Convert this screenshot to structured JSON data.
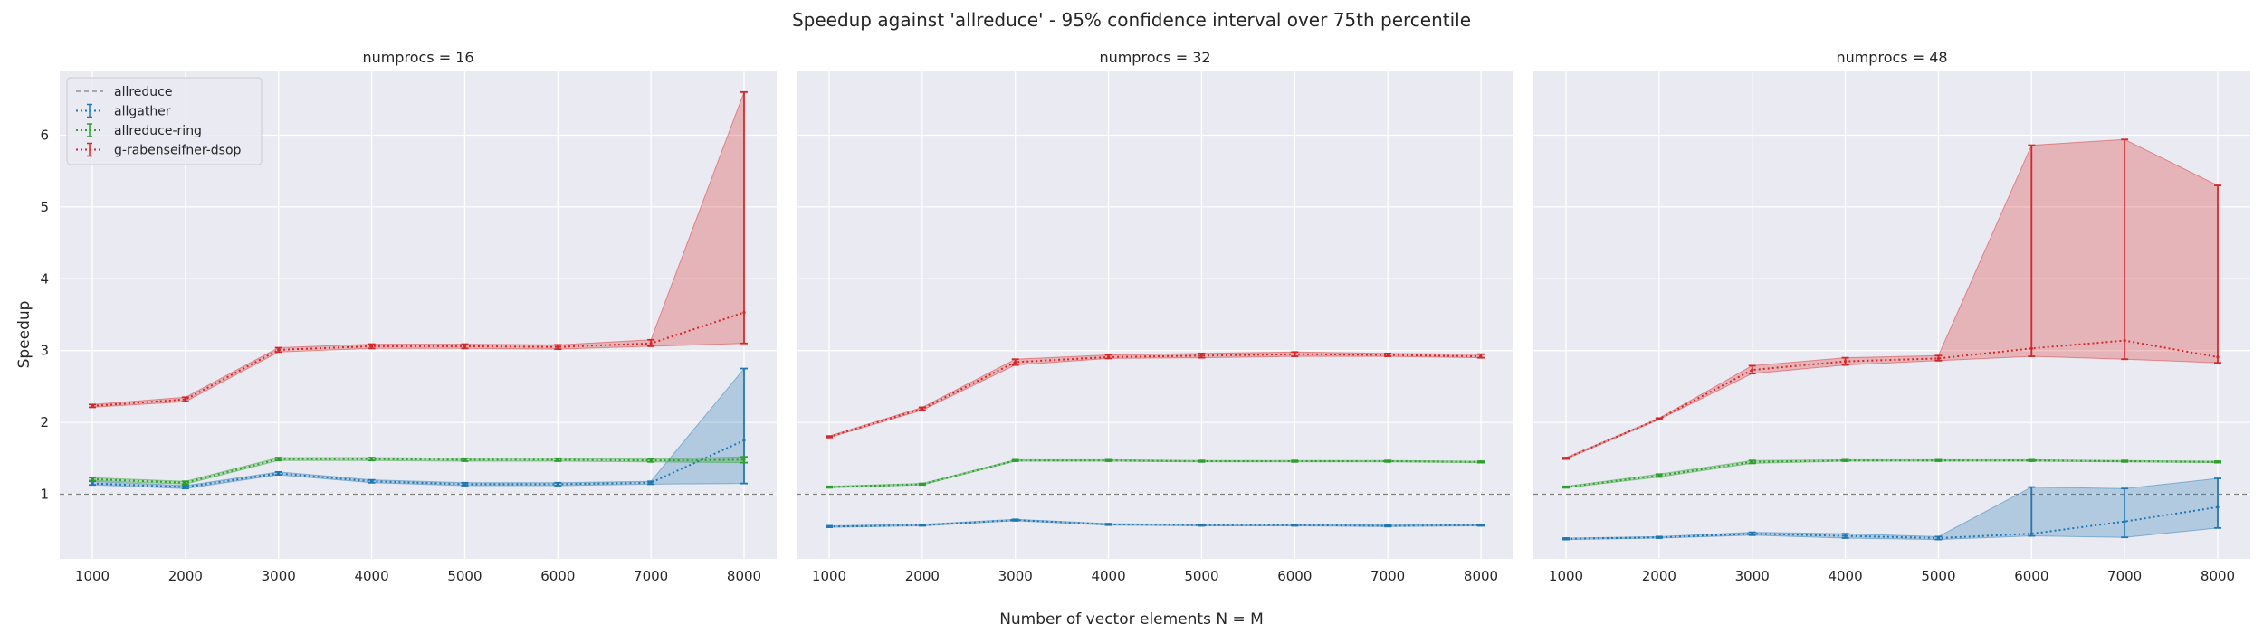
{
  "figure": {
    "title": "Speedup against 'allreduce' - 95% confidence interval over 75th percentile",
    "xlabel": "Number of vector elements N = M",
    "ylabel": "Speedup"
  },
  "chart_data": {
    "type": "line",
    "x": [
      1000,
      2000,
      3000,
      4000,
      5000,
      6000,
      7000,
      8000
    ],
    "xticks": [
      "1000",
      "2000",
      "3000",
      "4000",
      "5000",
      "6000",
      "7000",
      "8000"
    ],
    "yticks": [
      "1",
      "2",
      "3",
      "4",
      "5",
      "6"
    ],
    "ylim": [
      0.1,
      6.9
    ],
    "xlim": [
      650,
      8350
    ],
    "grid": true,
    "legend": {
      "placement": "top-left",
      "entries": [
        {
          "label": "allreduce",
          "color": "#808080",
          "style": "dashed"
        },
        {
          "label": "allgather",
          "color": "#1f77b4",
          "style": "dotted-errorbar"
        },
        {
          "label": "allreduce-ring",
          "color": "#2ca02c",
          "style": "dotted-errorbar"
        },
        {
          "label": "g-rabenseifner-dsop",
          "color": "#d62728",
          "style": "dotted-errorbar"
        }
      ]
    },
    "baseline": {
      "name": "allreduce",
      "value": 1.0,
      "color": "#808080"
    },
    "panels": [
      {
        "title": "numprocs = 16",
        "series": [
          {
            "name": "allgather",
            "color": "#1f77b4",
            "values": [
              1.15,
              1.1,
              1.29,
              1.18,
              1.14,
              1.14,
              1.16,
              1.75
            ],
            "lower": [
              1.13,
              1.08,
              1.27,
              1.16,
              1.12,
              1.12,
              1.14,
              1.15
            ],
            "upper": [
              1.18,
              1.12,
              1.31,
              1.2,
              1.16,
              1.16,
              1.18,
              2.75
            ]
          },
          {
            "name": "allreduce-ring",
            "color": "#2ca02c",
            "values": [
              1.21,
              1.16,
              1.49,
              1.49,
              1.48,
              1.48,
              1.47,
              1.48
            ],
            "lower": [
              1.19,
              1.14,
              1.47,
              1.47,
              1.46,
              1.46,
              1.45,
              1.44
            ],
            "upper": [
              1.23,
              1.18,
              1.51,
              1.51,
              1.5,
              1.5,
              1.49,
              1.52
            ]
          },
          {
            "name": "g-rabenseifner-dsop",
            "color": "#d62728",
            "values": [
              2.23,
              2.32,
              3.01,
              3.06,
              3.06,
              3.05,
              3.1,
              3.53
            ],
            "lower": [
              2.21,
              2.29,
              2.98,
              3.03,
              3.03,
              3.02,
              3.06,
              3.1
            ],
            "upper": [
              2.25,
              2.35,
              3.04,
              3.09,
              3.09,
              3.08,
              3.15,
              6.6
            ]
          }
        ]
      },
      {
        "title": "numprocs = 32",
        "series": [
          {
            "name": "allgather",
            "color": "#1f77b4",
            "values": [
              0.55,
              0.57,
              0.64,
              0.58,
              0.57,
              0.57,
              0.56,
              0.57
            ],
            "lower": [
              0.54,
              0.56,
              0.63,
              0.57,
              0.56,
              0.56,
              0.55,
              0.56
            ],
            "upper": [
              0.56,
              0.58,
              0.65,
              0.59,
              0.58,
              0.58,
              0.57,
              0.58
            ]
          },
          {
            "name": "allreduce-ring",
            "color": "#2ca02c",
            "values": [
              1.1,
              1.14,
              1.47,
              1.47,
              1.46,
              1.46,
              1.46,
              1.45
            ],
            "lower": [
              1.09,
              1.13,
              1.46,
              1.46,
              1.45,
              1.45,
              1.45,
              1.44
            ],
            "upper": [
              1.11,
              1.15,
              1.48,
              1.48,
              1.47,
              1.47,
              1.47,
              1.46
            ]
          },
          {
            "name": "g-rabenseifner-dsop",
            "color": "#d62728",
            "values": [
              1.8,
              2.19,
              2.84,
              2.91,
              2.93,
              2.95,
              2.94,
              2.92
            ],
            "lower": [
              1.79,
              2.17,
              2.8,
              2.89,
              2.9,
              2.92,
              2.92,
              2.9
            ],
            "upper": [
              1.81,
              2.21,
              2.88,
              2.94,
              2.96,
              2.98,
              2.96,
              2.95
            ]
          }
        ]
      },
      {
        "title": "numprocs = 48",
        "series": [
          {
            "name": "allgather",
            "color": "#1f77b4",
            "values": [
              0.38,
              0.4,
              0.45,
              0.42,
              0.39,
              0.45,
              0.62,
              0.82
            ],
            "lower": [
              0.37,
              0.39,
              0.43,
              0.39,
              0.37,
              0.42,
              0.4,
              0.53
            ],
            "upper": [
              0.39,
              0.41,
              0.47,
              0.45,
              0.41,
              1.1,
              1.08,
              1.22
            ]
          },
          {
            "name": "allreduce-ring",
            "color": "#2ca02c",
            "values": [
              1.1,
              1.26,
              1.45,
              1.47,
              1.47,
              1.47,
              1.46,
              1.45
            ],
            "lower": [
              1.09,
              1.24,
              1.43,
              1.46,
              1.46,
              1.46,
              1.45,
              1.44
            ],
            "upper": [
              1.11,
              1.28,
              1.47,
              1.48,
              1.48,
              1.48,
              1.47,
              1.46
            ]
          },
          {
            "name": "g-rabenseifner-dsop",
            "color": "#d62728",
            "values": [
              1.5,
              2.05,
              2.73,
              2.85,
              2.89,
              3.03,
              3.14,
              2.91
            ],
            "lower": [
              1.49,
              2.04,
              2.68,
              2.8,
              2.86,
              2.92,
              2.88,
              2.83
            ],
            "upper": [
              1.51,
              2.06,
              2.79,
              2.9,
              2.93,
              5.86,
              5.94,
              5.3
            ]
          }
        ]
      }
    ]
  }
}
